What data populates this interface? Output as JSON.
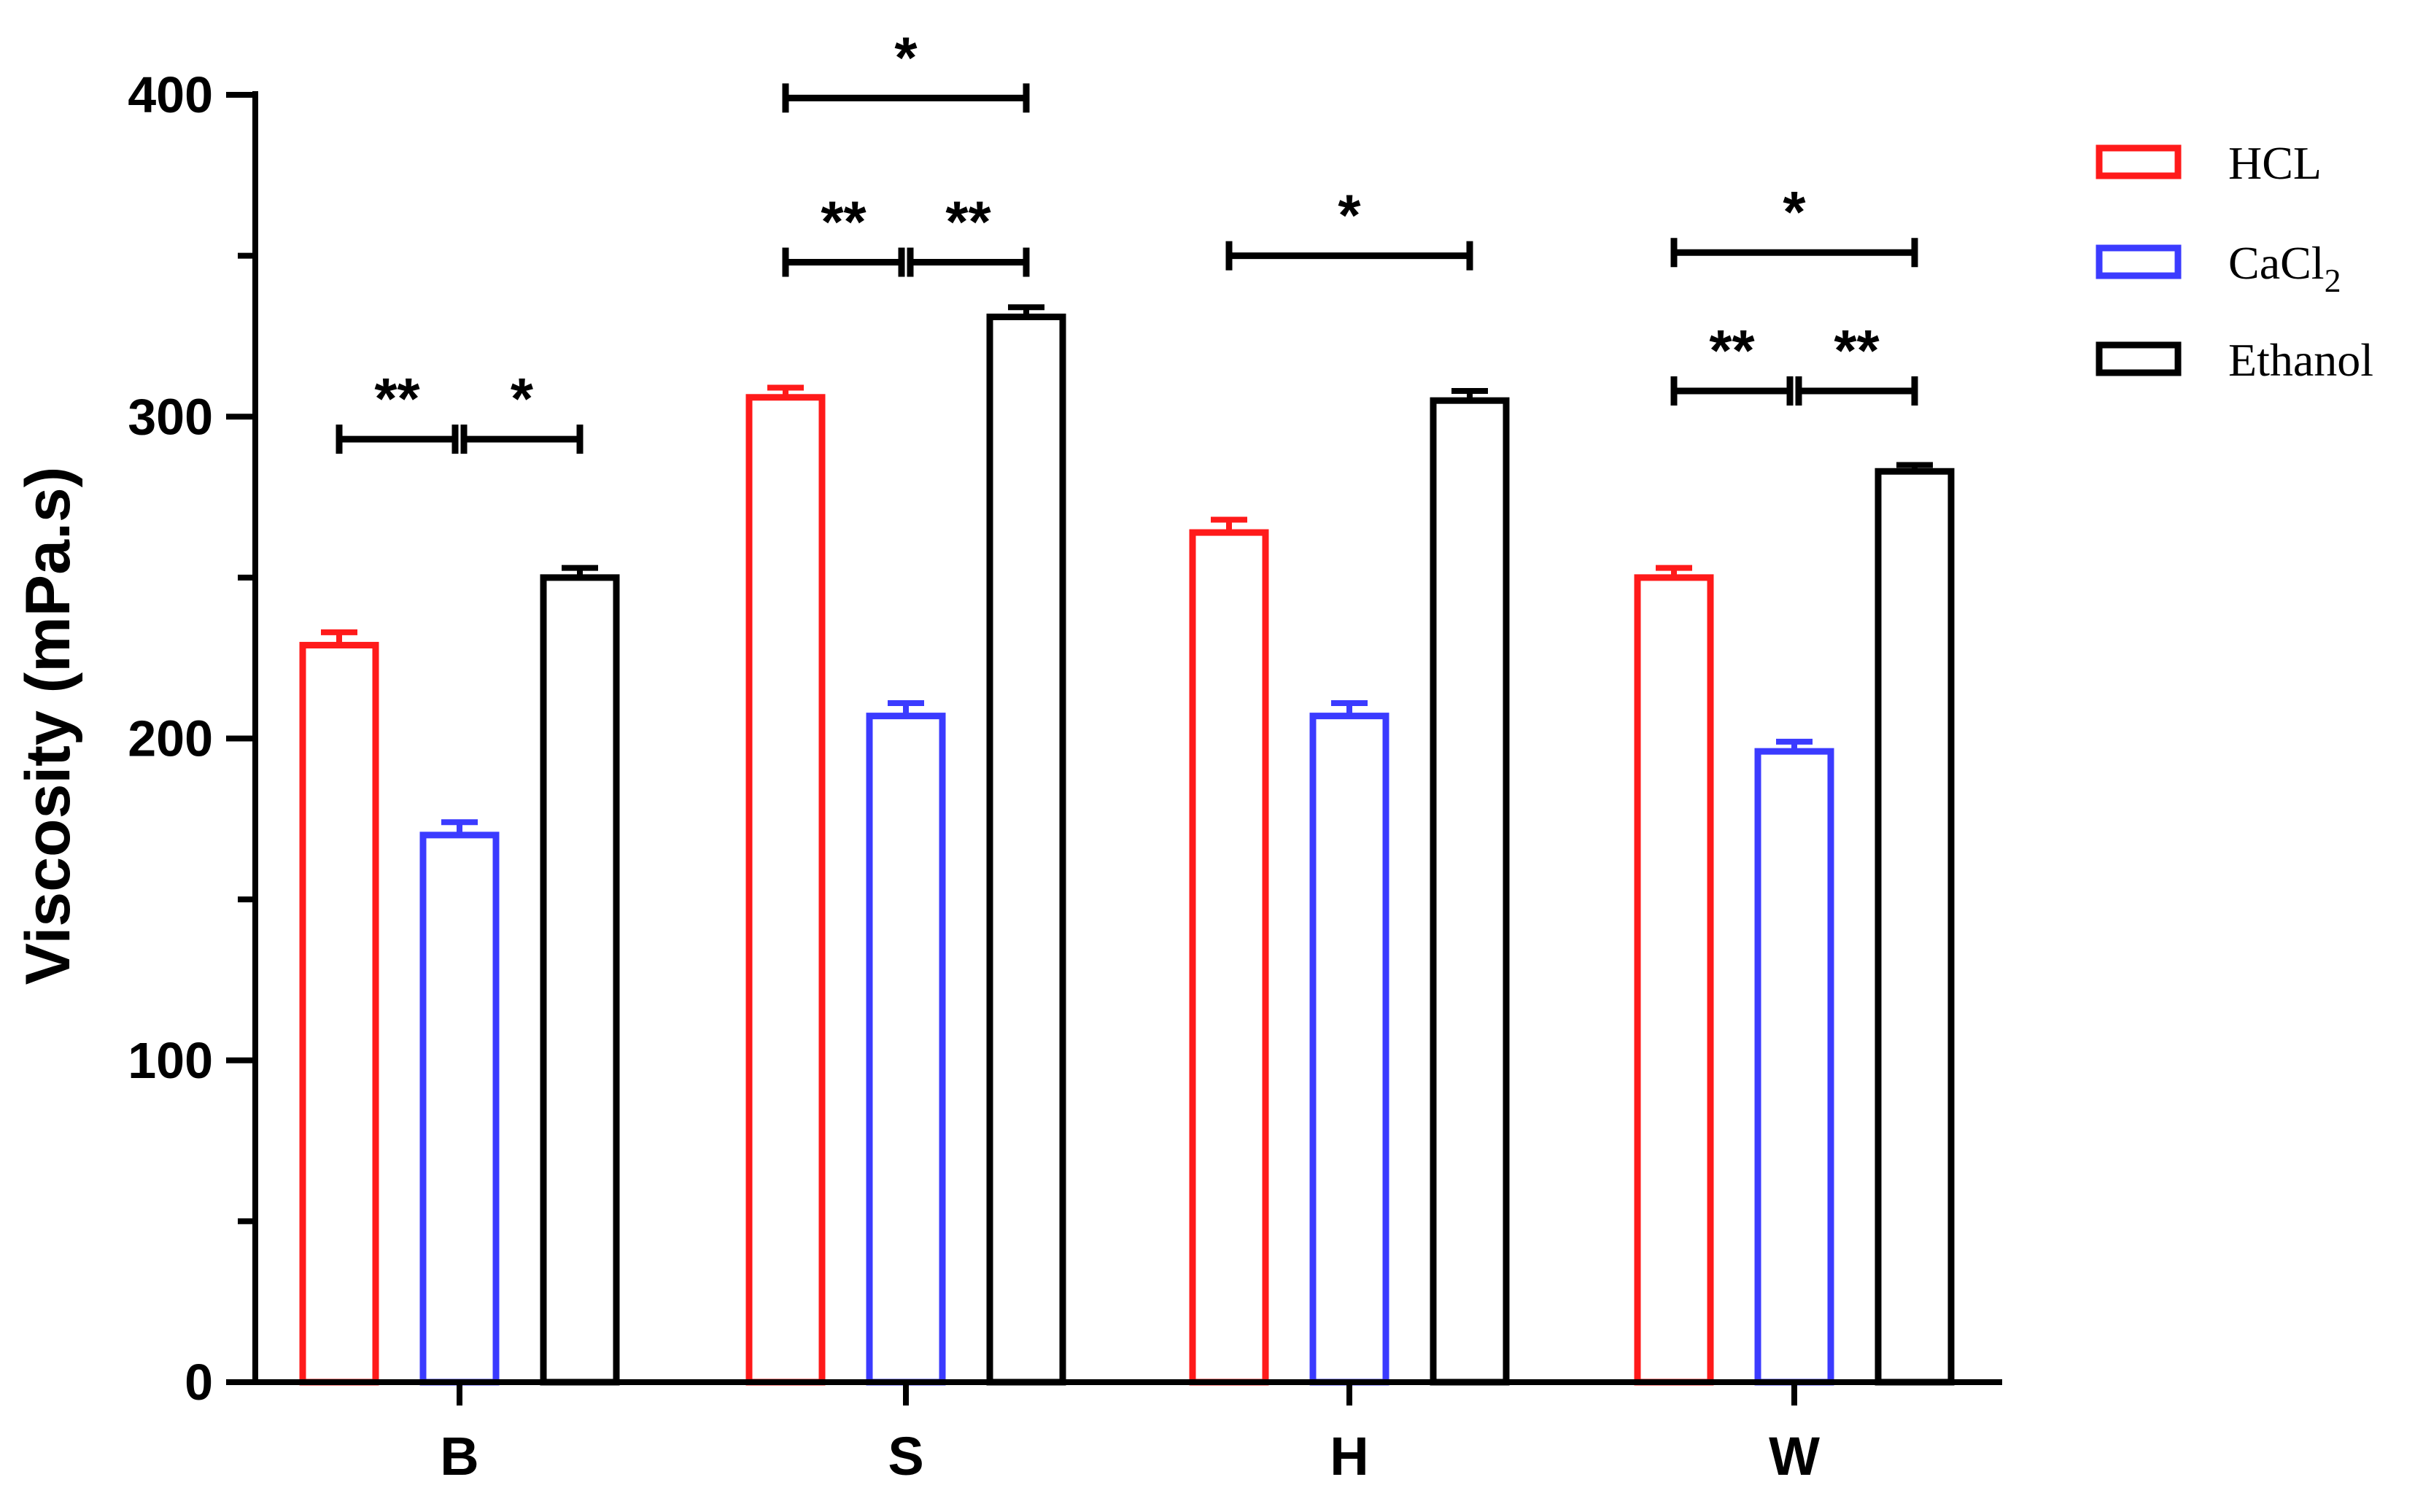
{
  "chart_data": {
    "type": "bar",
    "title": "",
    "xlabel": "",
    "ylabel": "Viscosity (mPa.s)",
    "ylim": [
      0,
      400
    ],
    "yticks": [
      0,
      100,
      200,
      300,
      400
    ],
    "categories": [
      "B",
      "S",
      "H",
      "W"
    ],
    "colors": {
      "HCL": "#ff1a1a",
      "CaCl2": "#3b3bff",
      "Ethanol": "#000000"
    },
    "series": [
      {
        "name": "HCL",
        "legend_main": "HCL",
        "legend_sub": "",
        "values": [
          229,
          306,
          264,
          250
        ],
        "errors": [
          4,
          3,
          4,
          3
        ]
      },
      {
        "name": "CaCl2",
        "legend_main": "CaCl",
        "legend_sub": "2",
        "values": [
          170,
          207,
          207,
          196
        ],
        "errors": [
          4,
          4,
          4,
          3
        ]
      },
      {
        "name": "Ethanol",
        "legend_main": "Ethanol",
        "legend_sub": "",
        "values": [
          250,
          331,
          305,
          283
        ],
        "errors": [
          3,
          3,
          3,
          2
        ]
      }
    ],
    "significance": [
      {
        "category": "B",
        "from_series": 0,
        "to_series": 1,
        "level": 293,
        "label": "**"
      },
      {
        "category": "B",
        "from_series": 1,
        "to_series": 2,
        "level": 293,
        "label": "*"
      },
      {
        "category": "S",
        "from_series": 0,
        "to_series": 1,
        "level": 348,
        "label": "**"
      },
      {
        "category": "S",
        "from_series": 1,
        "to_series": 2,
        "level": 348,
        "label": "**"
      },
      {
        "category": "S",
        "from_series": 0,
        "to_series": 2,
        "level": 399,
        "label": "*"
      },
      {
        "category": "H",
        "from_series": 0,
        "to_series": 2,
        "level": 350,
        "label": "*"
      },
      {
        "category": "W",
        "from_series": 0,
        "to_series": 1,
        "level": 308,
        "label": "**"
      },
      {
        "category": "W",
        "from_series": 1,
        "to_series": 2,
        "level": 308,
        "label": "**"
      },
      {
        "category": "W",
        "from_series": 0,
        "to_series": 2,
        "level": 351,
        "label": "*"
      }
    ]
  }
}
